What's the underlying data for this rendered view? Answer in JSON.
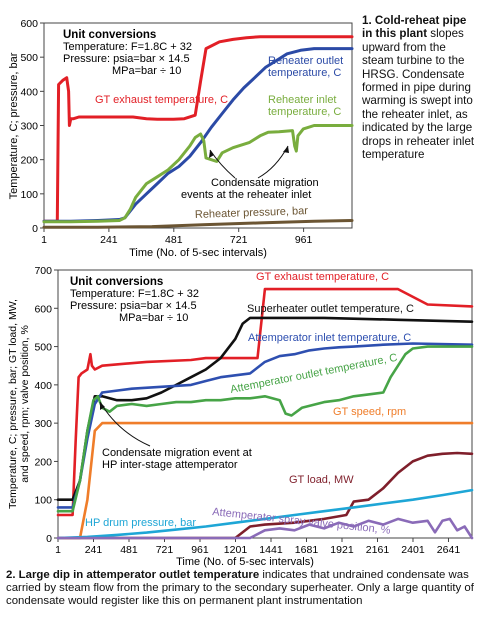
{
  "caption1": {
    "title": "1. Cold-reheat pipe in this plant",
    "body": "slopes upward from the steam turbine to the HRSG. Condensate formed in pipe during warming is swept into the reheater inlet, as indicated by the large drops in reheater inlet temperature"
  },
  "caption2": {
    "title": "2. Large dip in attemperator outlet temperature",
    "body": "indicates that undrained condensate was carried by steam flow from the primary to the secondary superheater. Only a large quantity of condensate would register like this on permanent plant instrumentation"
  },
  "colors": {
    "red": "#e21f26",
    "blue": "#2b4aa6",
    "green": "#79ad3e",
    "brown": "#6b5533",
    "black": "#111111",
    "blue2": "#2e4fb0",
    "green2": "#47a447",
    "orange": "#ef7d2a",
    "maroon": "#7f1f2b",
    "cyan": "#1ea6d6",
    "purple": "#8a6bb8"
  },
  "chart_data": [
    {
      "type": "line",
      "xlabel": "Time (No. of 5-sec intervals)",
      "ylabel": "Temperature, C; pressure, bar",
      "xlim": [
        1,
        1140
      ],
      "ylim": [
        0,
        600
      ],
      "xticks": [
        1,
        241,
        481,
        721,
        961
      ],
      "yticks": [
        0,
        100,
        200,
        300,
        400,
        500,
        600
      ],
      "conversions": {
        "title": "Unit conversions",
        "lines": [
          "Temperature: F=1.8C + 32",
          "Pressure: psia=bar × 14.5",
          "MPa=bar ÷ 10"
        ]
      },
      "annotation": "Condensate migration events at the reheater inlet",
      "series": [
        {
          "name": "GT exhaust temperature, C",
          "color_key": "red",
          "x": [
            1,
            50,
            55,
            70,
            85,
            92,
            95,
            100,
            110,
            130,
            200,
            280,
            330,
            380,
            420,
            480,
            520,
            560,
            580,
            600,
            650,
            700,
            750,
            800,
            900,
            1000,
            1140
          ],
          "y": [
            20,
            20,
            420,
            432,
            440,
            400,
            300,
            320,
            320,
            325,
            325,
            325,
            325,
            320,
            318,
            318,
            320,
            330,
            430,
            525,
            545,
            552,
            557,
            560,
            560,
            560,
            560
          ]
        },
        {
          "name": "Reheater outlet temperature, C",
          "color_key": "blue",
          "x": [
            1,
            100,
            200,
            280,
            300,
            340,
            380,
            420,
            460,
            500,
            540,
            580,
            620,
            660,
            700,
            740,
            780,
            820,
            860,
            900,
            950,
            1000,
            1140
          ],
          "y": [
            20,
            20,
            22,
            25,
            30,
            70,
            100,
            130,
            160,
            180,
            210,
            250,
            295,
            335,
            375,
            410,
            440,
            470,
            490,
            510,
            520,
            525,
            525
          ]
        },
        {
          "name": "Reheater inlet temperature, C",
          "color_key": "green",
          "x": [
            1,
            100,
            200,
            280,
            300,
            320,
            340,
            380,
            420,
            460,
            500,
            540,
            560,
            580,
            592,
            600,
            640,
            660,
            700,
            760,
            800,
            830,
            870,
            920,
            928,
            934,
            940,
            960,
            1000,
            1140
          ],
          "y": [
            18,
            18,
            20,
            22,
            30,
            55,
            90,
            130,
            150,
            170,
            200,
            240,
            265,
            275,
            255,
            205,
            195,
            220,
            235,
            250,
            270,
            280,
            282,
            285,
            240,
            225,
            270,
            290,
            300,
            300
          ]
        },
        {
          "name": "Reheater pressure, bar",
          "color_key": "brown",
          "x": [
            1,
            200,
            400,
            600,
            800,
            1000,
            1140
          ],
          "y": [
            2,
            2,
            4,
            10,
            15,
            20,
            22
          ]
        }
      ]
    },
    {
      "type": "line",
      "xlabel": "Time (No. of 5-sec intervals)",
      "ylabel": "Temperature, C; pressure, bar; GT load, MW, and speed, rpm; valve position, %",
      "xlim": [
        1,
        2800
      ],
      "ylim": [
        0,
        700
      ],
      "xticks": [
        1,
        241,
        481,
        721,
        961,
        1201,
        1441,
        1681,
        1921,
        2161,
        2401,
        2641
      ],
      "yticks": [
        0,
        100,
        200,
        300,
        400,
        500,
        600,
        700
      ],
      "conversions": {
        "title": "Unit conversions",
        "lines": [
          "Temperature: F=1.8C + 32",
          "Pressure: psia=bar × 14.5",
          "MPa=bar ÷ 10"
        ]
      },
      "annotation": "Condensate migration event at HP inter-stage attemperator",
      "series": [
        {
          "name": "GT exhaust temperature, C",
          "color_key": "red",
          "x": [
            1,
            100,
            120,
            140,
            160,
            200,
            220,
            230,
            250,
            300,
            600,
            900,
            1000,
            1100,
            1200,
            1350,
            1400,
            1800,
            2300,
            2500,
            2800
          ],
          "y": [
            60,
            60,
            250,
            420,
            430,
            440,
            480,
            450,
            440,
            450,
            460,
            465,
            470,
            470,
            470,
            470,
            650,
            650,
            650,
            610,
            605
          ]
        },
        {
          "name": "Superheater outlet temperature, C",
          "color_key": "black",
          "x": [
            1,
            100,
            150,
            200,
            250,
            300,
            400,
            500,
            600,
            700,
            800,
            900,
            1000,
            1100,
            1200,
            1250,
            1300,
            1400,
            1800,
            2300,
            2800
          ],
          "y": [
            100,
            100,
            150,
            280,
            370,
            370,
            360,
            360,
            365,
            380,
            400,
            420,
            440,
            470,
            520,
            560,
            575,
            575,
            575,
            570,
            565
          ]
        },
        {
          "name": "Attemperator inlet temperature, C",
          "color_key": "blue2",
          "x": [
            1,
            100,
            150,
            200,
            250,
            300,
            500,
            700,
            900,
            1000,
            1100,
            1200,
            1300,
            1400,
            1500,
            1600,
            1700,
            1800,
            1900,
            2000,
            2200,
            2400,
            2800
          ],
          "y": [
            80,
            80,
            150,
            260,
            350,
            380,
            390,
            395,
            400,
            410,
            420,
            425,
            430,
            460,
            475,
            480,
            490,
            495,
            498,
            500,
            505,
            508,
            505
          ]
        },
        {
          "name": "Attemperator outlet temperature, C",
          "color_key": "green2",
          "x": [
            1,
            100,
            150,
            200,
            240,
            270,
            300,
            350,
            400,
            500,
            600,
            700,
            800,
            900,
            1000,
            1100,
            1200,
            1300,
            1400,
            1500,
            1540,
            1580,
            1650,
            1700,
            1800,
            1900,
            2000,
            2100,
            2200,
            2250,
            2300,
            2350,
            2400,
            2500,
            2800
          ],
          "y": [
            70,
            70,
            150,
            280,
            360,
            370,
            340,
            330,
            345,
            350,
            345,
            350,
            355,
            355,
            360,
            360,
            365,
            365,
            370,
            360,
            325,
            320,
            340,
            345,
            355,
            360,
            370,
            375,
            380,
            420,
            450,
            480,
            495,
            500,
            500
          ]
        },
        {
          "name": "GT speed, rpm",
          "color_key": "orange",
          "x": [
            1,
            150,
            200,
            250,
            300,
            2800
          ],
          "y": [
            0,
            0,
            100,
            280,
            300,
            300
          ]
        },
        {
          "name": "GT load, MW",
          "color_key": "maroon",
          "x": [
            1,
            1200,
            1300,
            1400,
            1600,
            1800,
            1950,
            2000,
            2100,
            2200,
            2300,
            2400,
            2500,
            2600,
            2700,
            2800
          ],
          "y": [
            0,
            0,
            30,
            35,
            40,
            50,
            60,
            95,
            100,
            130,
            170,
            200,
            215,
            220,
            222,
            220
          ]
        },
        {
          "name": "HP drum pressure, bar",
          "color_key": "cyan",
          "x": [
            1,
            200,
            400,
            600,
            800,
            1000,
            1200,
            1400,
            1600,
            1800,
            2000,
            2200,
            2400,
            2600,
            2800
          ],
          "y": [
            0,
            3,
            8,
            14,
            22,
            30,
            40,
            50,
            60,
            70,
            80,
            90,
            100,
            112,
            125
          ]
        },
        {
          "name": "Attemperator spray valve position, %",
          "color_key": "purple",
          "x": [
            1,
            1300,
            1400,
            1500,
            1600,
            1700,
            1800,
            1900,
            2000,
            2100,
            2200,
            2300,
            2400,
            2500,
            2550,
            2600,
            2650,
            2700,
            2750,
            2800
          ],
          "y": [
            0,
            0,
            20,
            25,
            20,
            35,
            25,
            40,
            30,
            45,
            35,
            50,
            40,
            45,
            15,
            45,
            50,
            20,
            30,
            0
          ]
        }
      ]
    }
  ]
}
